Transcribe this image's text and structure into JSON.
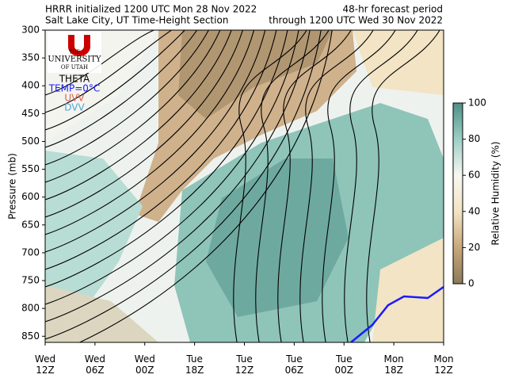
{
  "chart_data": {
    "type": "time-height",
    "title": "HRRR initialized 1200 UTC Mon 28 Nov 2022",
    "subtitle": "Salt Lake City, UT Time-Height Section",
    "title_right": "48-hr forecast period",
    "subtitle_right": "through 1200 UTC Wed 30 Nov 2022",
    "y_label": "Pressure (mb)",
    "y_inverted": true,
    "ylim": [
      300,
      861
    ],
    "yticks": [
      300,
      350,
      400,
      450,
      500,
      550,
      600,
      650,
      700,
      750,
      800,
      850
    ],
    "xlim": [
      0,
      48
    ],
    "xticks": [
      {
        "value": 0,
        "label": "Wed\n12Z"
      },
      {
        "value": 6,
        "label": "Wed\n06Z"
      },
      {
        "value": 12,
        "label": "Wed\n00Z"
      },
      {
        "value": 18,
        "label": "Tue\n18Z"
      },
      {
        "value": 24,
        "label": "Tue\n12Z"
      },
      {
        "value": 30,
        "label": "Tue\n06Z"
      },
      {
        "value": 36,
        "label": "Tue\n00Z"
      },
      {
        "value": 42,
        "label": "Mon\n18Z"
      },
      {
        "value": 48,
        "label": "Mon\n12Z"
      }
    ],
    "logo": [
      "THE",
      "UNIVERSITY",
      "OF UTAH"
    ],
    "legend": [
      {
        "name": "THETA",
        "color": "#000000"
      },
      {
        "name": "TEMP=0°C",
        "color": "#1a1aff"
      },
      {
        "name": "UVV",
        "color": "#e0604c"
      },
      {
        "name": "DVV",
        "color": "#4fa6d8"
      }
    ],
    "colorbar": {
      "label": "Relative Humidity (%)",
      "lim": [
        0,
        100
      ],
      "ticks": [
        0,
        20,
        40,
        60,
        80,
        100
      ],
      "colors": [
        "#8b7a5c",
        "#c9a67a",
        "#f2e4c4",
        "#f7f7f2",
        "#9ccfc5",
        "#4e8f86"
      ]
    }
  }
}
